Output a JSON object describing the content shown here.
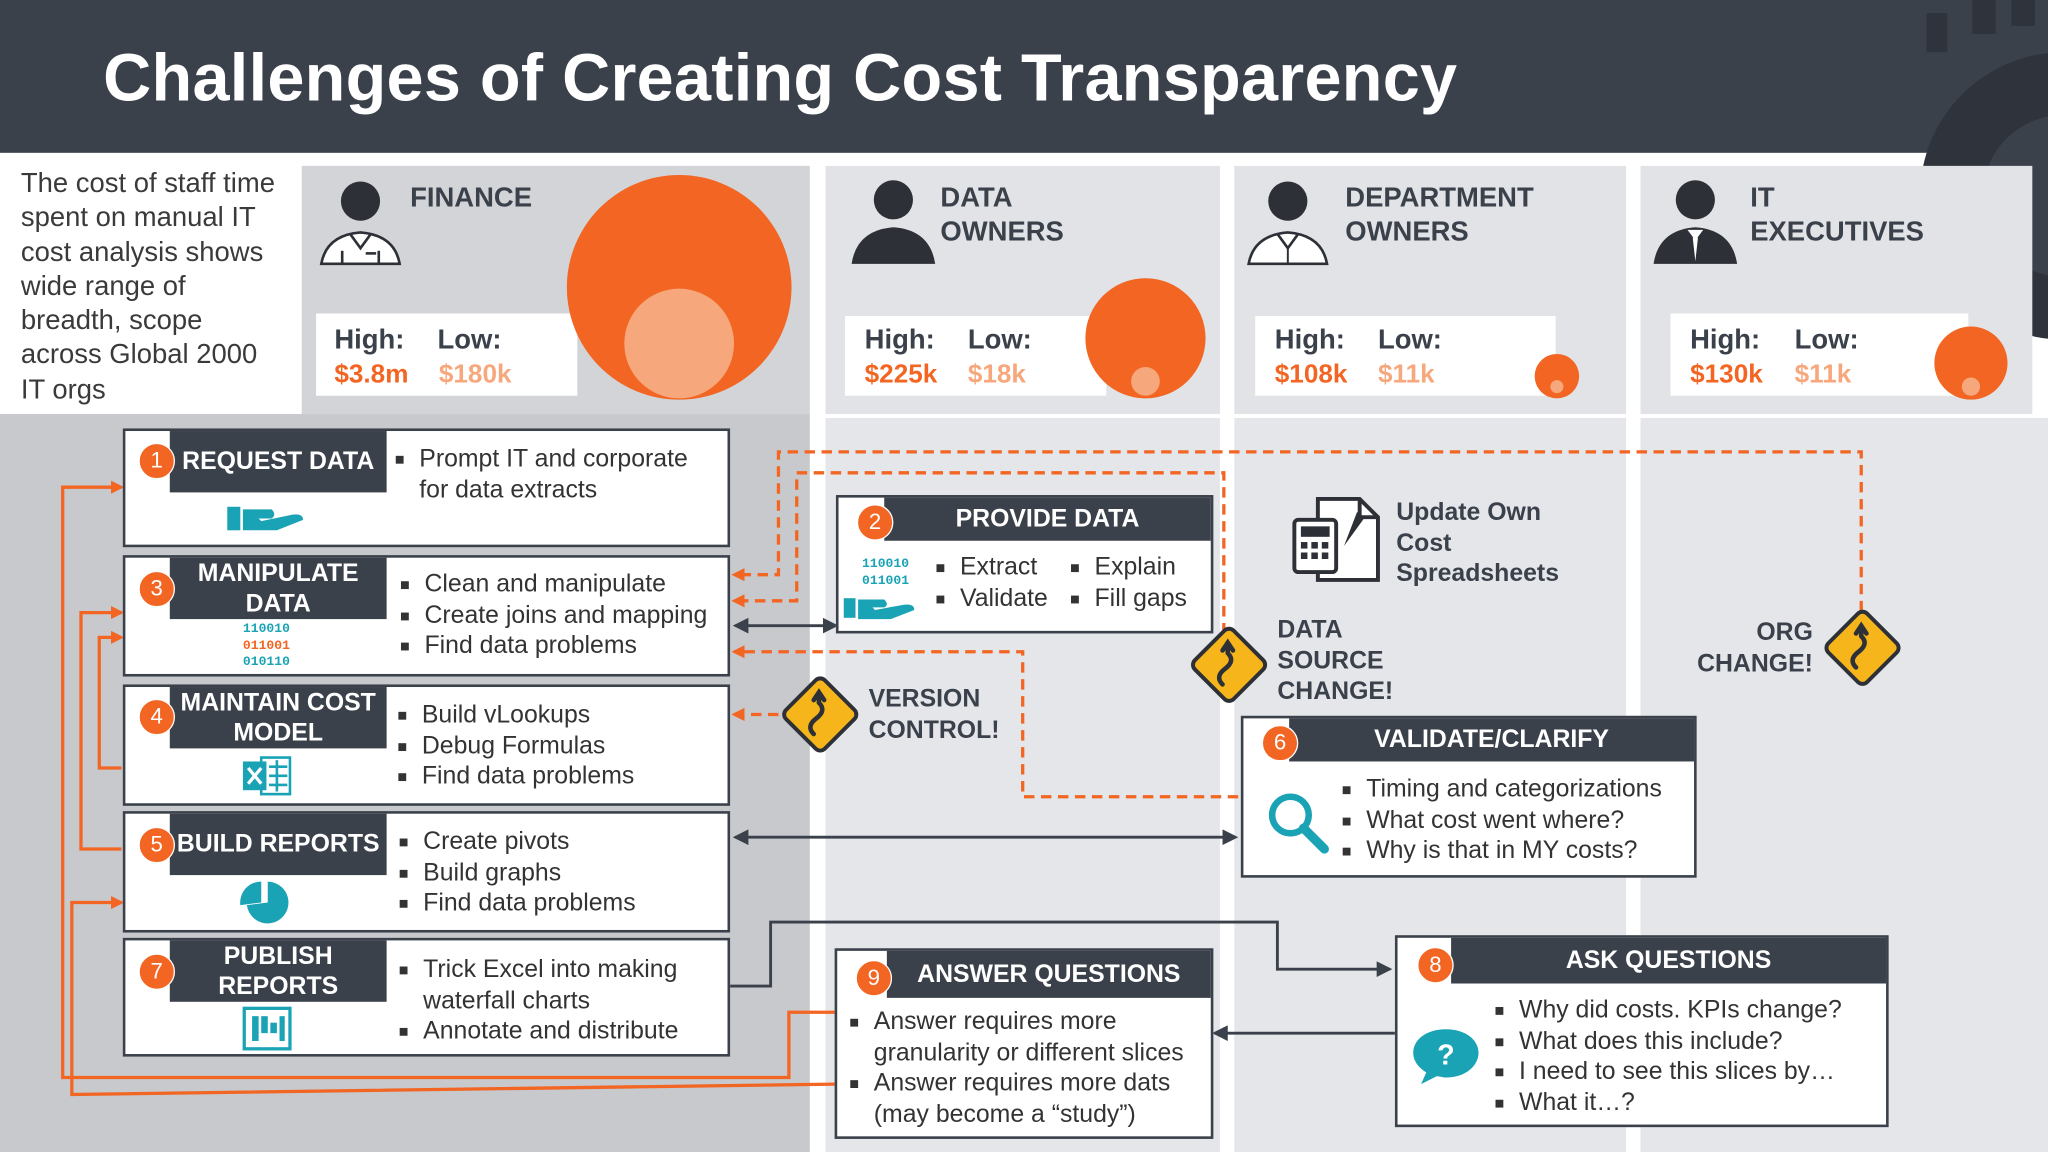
{
  "title": "Challenges of Creating Cost Transparency",
  "intro": "The cost of staff time spent on manual IT cost analysis shows wide range of breadth, scope across Global 2000 IT orgs",
  "colors": {
    "header": "#3b414b",
    "accent": "#f26522",
    "accent_light": "#f7a77c",
    "teal": "#1aa3b5"
  },
  "personas": [
    {
      "label": "FINANCE",
      "high_label": "High:",
      "low_label": "Low:",
      "high": "$3.8m",
      "low": "$180k",
      "icon": "finance-person-icon"
    },
    {
      "label": "DATA OWNERS",
      "high_label": "High:",
      "low_label": "Low:",
      "high": "$225k",
      "low": "$18k",
      "icon": "data-owner-person-icon"
    },
    {
      "label": "DEPARTMENT OWNERS",
      "high_label": "High:",
      "low_label": "Low:",
      "high": "$108k",
      "low": "$11k",
      "icon": "department-owner-person-icon"
    },
    {
      "label": "IT EXECUTIVES",
      "high_label": "High:",
      "low_label": "Low:",
      "high": "$130k",
      "low": "$11k",
      "icon": "it-executive-person-icon"
    }
  ],
  "steps": {
    "s1": {
      "num": "1",
      "title": "REQUEST DATA",
      "items": [
        "Prompt IT and corporate for data extracts"
      ],
      "icon": "hand-icon"
    },
    "s2": {
      "num": "2",
      "title": "PROVIDE DATA",
      "items": [
        "Extract",
        "Validate",
        "Explain",
        "Fill gaps"
      ],
      "icon": "binary-hand-icon",
      "binary": [
        "110010",
        "011001"
      ]
    },
    "s3": {
      "num": "3",
      "title": "MANIPULATE DATA",
      "items": [
        "Clean and manipulate",
        "Create joins and mapping",
        "Find data problems"
      ],
      "icon": "binary-icon",
      "binary": [
        "110010",
        "011001",
        "010110"
      ]
    },
    "s4": {
      "num": "4",
      "title": "MAINTAIN COST MODEL",
      "items": [
        "Build vLookups",
        "Debug Formulas",
        "Find data problems"
      ],
      "icon": "excel-icon"
    },
    "s5": {
      "num": "5",
      "title": "BUILD REPORTS",
      "items": [
        "Create pivots",
        "Build graphs",
        "Find data problems"
      ],
      "icon": "pie-chart-icon"
    },
    "s6": {
      "num": "6",
      "title": "VALIDATE/CLARIFY",
      "items": [
        "Timing and categorizations",
        "What cost went where?",
        "Why is that in MY costs?"
      ],
      "icon": "magnifier-icon"
    },
    "s7": {
      "num": "7",
      "title": "PUBLISH REPORTS",
      "items": [
        "Trick Excel into making waterfall charts",
        "Annotate and distribute"
      ],
      "icon": "bar-chart-icon"
    },
    "s8": {
      "num": "8",
      "title": "ASK QUESTIONS",
      "items": [
        "Why did costs. KPIs change?",
        "What does this include?",
        "I need to see this slices by…",
        "What it…?"
      ],
      "icon": "question-bubble-icon"
    },
    "s9": {
      "num": "9",
      "title": "ANSWER QUESTIONS",
      "items": [
        "Answer requires more granularity or different slices",
        "Answer requires more dats (may become a “study”)"
      ]
    }
  },
  "spreadsheets_note": "Update Own Cost Spreadsheets",
  "warnings": {
    "version_control": "VERSION CONTROL!",
    "data_source_change": "DATA SOURCE CHANGE!",
    "org_change": "ORG CHANGE!"
  }
}
